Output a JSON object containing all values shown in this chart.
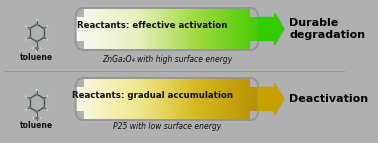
{
  "bg_color": "#b8b8b8",
  "panel1": {
    "bar_label": "Reactants: effective activation",
    "sub_label": "ZnGa₂O₄ with high surface energy",
    "bar_gradient_stops": [
      "#f8f8f0",
      "#e8f0c0",
      "#a0d840",
      "#44cc00"
    ],
    "arrow_color": "#33cc00",
    "result_text": "Durable\ndegradation"
  },
  "panel2": {
    "bar_label": "Reactants: gradual accumulation",
    "sub_label": "P25 with low surface energy",
    "bar_gradient_stops": [
      "#f8f8e8",
      "#f0e890",
      "#d4b820",
      "#b89000"
    ],
    "arrow_color": "#c8a000",
    "result_text": "Deactivation"
  },
  "toluene_label": "toluene",
  "fig_bg": "#b0b0b0"
}
